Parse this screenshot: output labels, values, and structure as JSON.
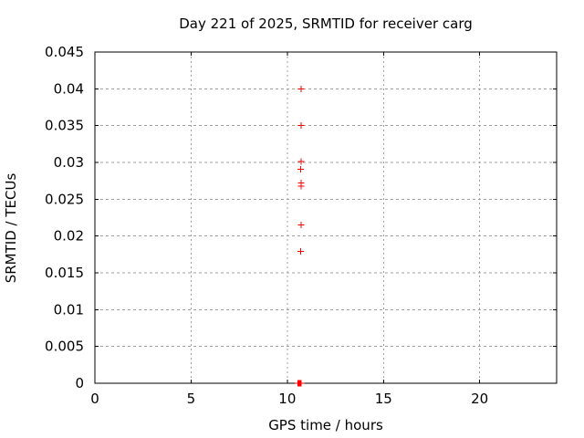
{
  "chart_data": {
    "type": "scatter",
    "title": "Day 221 of 2025, SRMTID for receiver carg",
    "xlabel": "GPS time / hours",
    "ylabel": "SRMTID / TECUs",
    "xlim": [
      0,
      24
    ],
    "ylim": [
      0,
      0.045
    ],
    "xticks": {
      "values": [
        0,
        5,
        10,
        15,
        20
      ],
      "labels": [
        "0",
        "5",
        "10",
        "15",
        "20"
      ]
    },
    "yticks": {
      "values": [
        0,
        0.005,
        0.01,
        0.015,
        0.02,
        0.025,
        0.03,
        0.035,
        0.04,
        0.045
      ],
      "labels": [
        "0",
        "0.005",
        "0.01",
        "0.015",
        "0.02",
        "0.025",
        "0.03",
        "0.035",
        "0.04",
        "0.045"
      ]
    },
    "grid": {
      "show": true,
      "color": "#a0a0a0",
      "style": "dashed"
    },
    "legend": {
      "show": false
    },
    "series": [
      {
        "name": "SRMTID",
        "marker": "plus",
        "color": "#ff0000",
        "points": [
          {
            "x": 10.72,
            "y": 0.04
          },
          {
            "x": 10.71,
            "y": 0.035
          },
          {
            "x": 10.73,
            "y": 0.0301
          },
          {
            "x": 10.7,
            "y": 0.0291
          },
          {
            "x": 10.71,
            "y": 0.0272
          },
          {
            "x": 10.73,
            "y": 0.0268
          },
          {
            "x": 10.73,
            "y": 0.0215
          },
          {
            "x": 10.7,
            "y": 0.0179
          },
          {
            "x": 10.56,
            "y": 0
          },
          {
            "x": 10.6,
            "y": 0
          },
          {
            "x": 10.64,
            "y": 0
          },
          {
            "x": 10.68,
            "y": 0
          },
          {
            "x": 10.72,
            "y": 0
          }
        ]
      }
    ]
  },
  "colors": {
    "background": "#ffffff",
    "axis": "#000000",
    "text": "#000000",
    "marker": "#ff0000",
    "grid": "#a0a0a0"
  }
}
